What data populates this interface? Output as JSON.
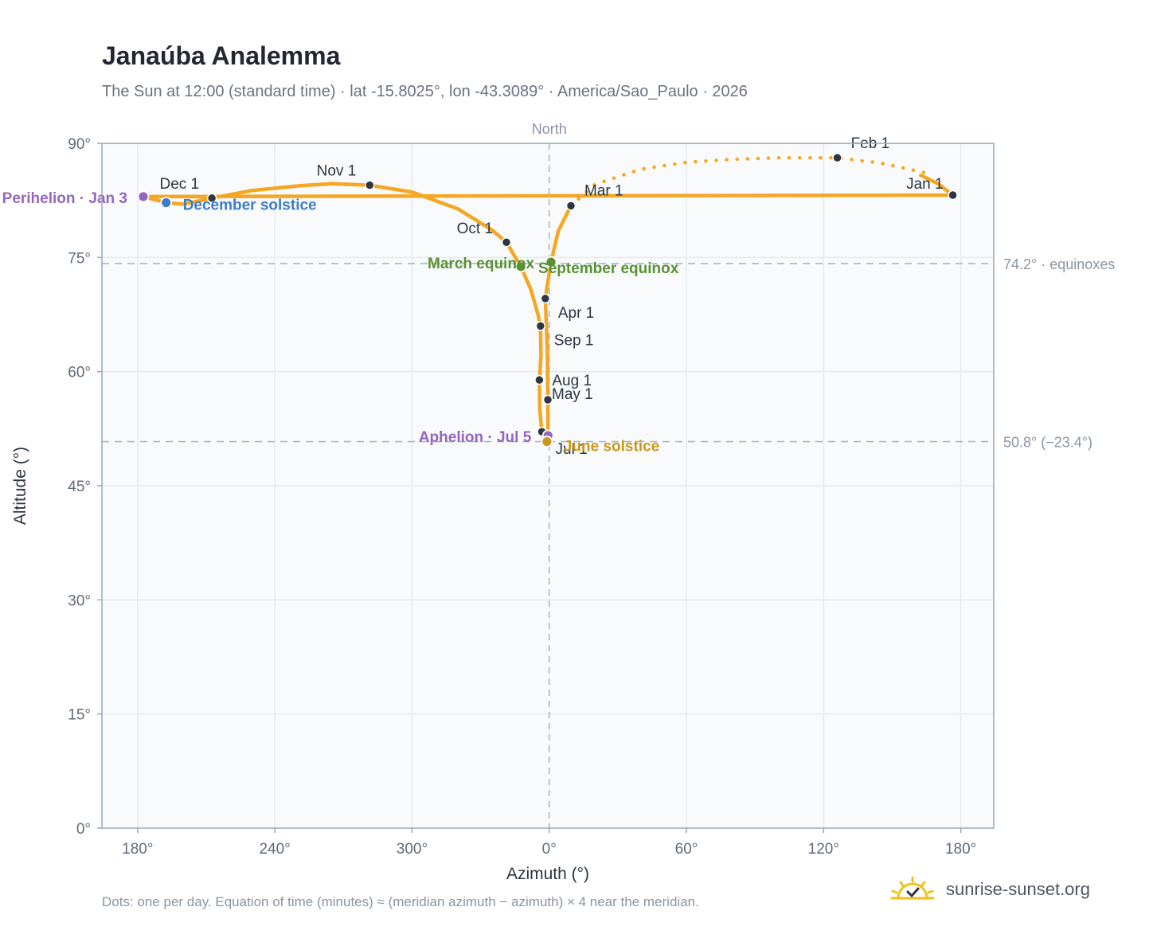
{
  "header": {
    "title": "Janaúba Analemma",
    "subtitle": "The Sun at 12:00 (standard time) · lat -15.8025°, lon -43.3089° · America/Sao_Paulo · 2026"
  },
  "footer": {
    "note": "Dots: one per day. Equation of time (minutes) ≈ (meridian azimuth − azimuth) × 4 near the meridian.",
    "brand": "sunrise-sunset.org"
  },
  "colors": {
    "curve": "#F5A623",
    "month_dot": "#2F3640",
    "equinox": "#5A9133",
    "december_solstice": "#3D7CC9",
    "june_solstice": "#C9971A",
    "apsis": "#9467BD",
    "grid": "#E6EAEE",
    "reference_line": "#A9B8C2",
    "plot_bg": "#F8FAFC"
  },
  "chart_data": {
    "type": "scatter",
    "title": "Janaúba Analemma",
    "xlabel": "Azimuth (°)",
    "ylabel": "Altitude (°)",
    "x_ticks": [
      "180°",
      "240°",
      "300°",
      "0°",
      "60°",
      "120°",
      "180°"
    ],
    "y_ticks": [
      "0°",
      "15°",
      "30°",
      "45°",
      "60°",
      "75°",
      "90°"
    ],
    "ylim": [
      0,
      90
    ],
    "x_axis_note": "x axis unwrapped around North (0°); 180° appears at both ends",
    "grid": true,
    "north_label": "North",
    "reference_lines": [
      {
        "altitude": 74.2,
        "label": "74.2° · equinoxes"
      },
      {
        "altitude": 50.8,
        "label": "50.8° (−23.4°)"
      }
    ],
    "month_markers": [
      {
        "label": "Jan 1",
        "azimuth": 176.5,
        "altitude": 83.2
      },
      {
        "label": "Feb 1",
        "azimuth": 126.0,
        "altitude": 88.1
      },
      {
        "label": "Mar 1",
        "azimuth": 9.5,
        "altitude": 81.8
      },
      {
        "label": "Apr 1",
        "azimuth": 358.3,
        "altitude": 69.6
      },
      {
        "label": "May 1",
        "azimuth": 359.4,
        "altitude": 56.3
      },
      {
        "label": "Jul 1",
        "azimuth": 356.8,
        "altitude": 52.1
      },
      {
        "label": "Aug 1",
        "azimuth": 355.7,
        "altitude": 58.9
      },
      {
        "label": "Sep 1",
        "azimuth": 356.2,
        "altitude": 66.0
      },
      {
        "label": "Oct 1",
        "azimuth": 341.3,
        "altitude": 77.0
      },
      {
        "label": "Nov 1",
        "azimuth": 281.5,
        "altitude": 84.5
      },
      {
        "label": "Dec 1",
        "azimuth": 212.5,
        "altitude": 82.8
      }
    ],
    "special_points": [
      {
        "label": "Perihelion · Jan 3",
        "kind": "apsis",
        "azimuth": 182.5,
        "altitude": 83.0
      },
      {
        "label": "December solstice",
        "kind": "december_solstice",
        "azimuth": 192.5,
        "altitude": 82.2
      },
      {
        "label": "March equinox",
        "kind": "equinox",
        "azimuth": 347.6,
        "altitude": 73.8
      },
      {
        "label": "September equinox",
        "kind": "equinox",
        "azimuth": 0.8,
        "altitude": 74.4
      },
      {
        "label": "Aphelion · Jul 5",
        "kind": "apsis",
        "azimuth": 359.5,
        "altitude": 51.6
      },
      {
        "label": "June solstice",
        "kind": "june_solstice",
        "azimuth": 359.0,
        "altitude": 50.8
      }
    ],
    "daily_path": [
      [
        162.5,
        85.8
      ],
      [
        170,
        84.7
      ],
      [
        176.5,
        83.2
      ],
      [
        182.5,
        83.0
      ],
      [
        192.5,
        82.2
      ],
      [
        200,
        82.0
      ],
      [
        212.5,
        82.8
      ],
      [
        230,
        83.8
      ],
      [
        250,
        84.4
      ],
      [
        265,
        84.7
      ],
      [
        281.5,
        84.5
      ],
      [
        300,
        83.6
      ],
      [
        320,
        81.4
      ],
      [
        335,
        78.6
      ],
      [
        341.3,
        77.0
      ],
      [
        347.6,
        73.8
      ],
      [
        352,
        70.8
      ],
      [
        355,
        67.6
      ],
      [
        356.2,
        66.0
      ],
      [
        356.4,
        62.0
      ],
      [
        355.7,
        58.9
      ],
      [
        355.9,
        55.0
      ],
      [
        356.8,
        52.1
      ],
      [
        358,
        51.0
      ],
      [
        359,
        50.8
      ],
      [
        359.5,
        51.6
      ],
      [
        359.4,
        56.3
      ],
      [
        359.2,
        63.0
      ],
      [
        358.3,
        69.6
      ],
      [
        0.8,
        74.4
      ],
      [
        4,
        78.5
      ],
      [
        9.5,
        81.8
      ],
      [
        20,
        84.6
      ],
      [
        40,
        86.6
      ],
      [
        60,
        87.5
      ],
      [
        80,
        87.9
      ],
      [
        100,
        88.1
      ],
      [
        126,
        88.1
      ],
      [
        145,
        87.4
      ],
      [
        165,
        86.1
      ]
    ]
  }
}
